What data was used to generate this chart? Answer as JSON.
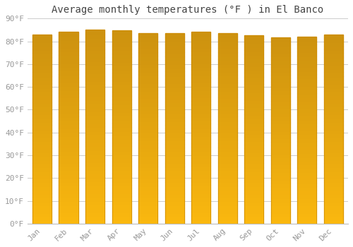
{
  "title": "Average monthly temperatures (°F ) in El Banco",
  "months": [
    "Jan",
    "Feb",
    "Mar",
    "Apr",
    "May",
    "Jun",
    "Jul",
    "Aug",
    "Sep",
    "Oct",
    "Nov",
    "Dec"
  ],
  "values": [
    83.1,
    84.2,
    85.1,
    84.9,
    83.7,
    83.5,
    84.2,
    83.7,
    82.6,
    81.7,
    82.0,
    83.1
  ],
  "bar_color": "#FBB117",
  "bar_edge_color": "#CC8800",
  "background_color": "#FFFFFF",
  "plot_bg_color": "#FFFFFF",
  "grid_color": "#CCCCCC",
  "text_color": "#999999",
  "ylim": [
    0,
    90
  ],
  "yticks": [
    0,
    10,
    20,
    30,
    40,
    50,
    60,
    70,
    80,
    90
  ],
  "title_fontsize": 10,
  "tick_fontsize": 8,
  "bar_width": 0.72
}
